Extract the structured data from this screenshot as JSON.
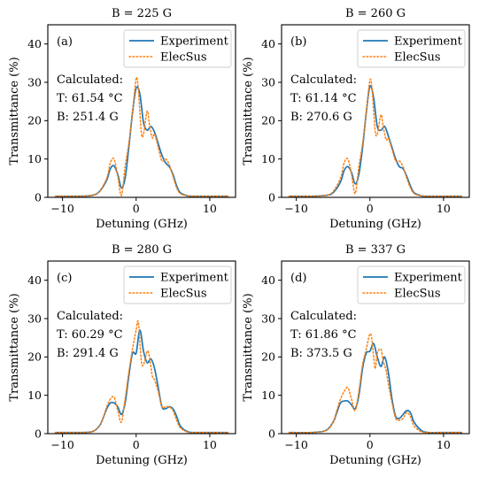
{
  "colors": {
    "experiment": "#1f77b4",
    "elecsus": "#ff7f0e",
    "axes": "#000000"
  },
  "chart_data": [
    {
      "type": "line",
      "title": "B = 225 G",
      "panel_label": "(a)",
      "xlabel": "Detuning (GHz)",
      "ylabel": "Transmittance (%)",
      "xlim": [
        -12,
        13.5
      ],
      "ylim": [
        0,
        45
      ],
      "xticks": [
        -10,
        0,
        10
      ],
      "yticks": [
        0,
        10,
        20,
        30,
        40
      ],
      "xtick_labels": [
        "−10",
        "0",
        "10"
      ],
      "ytick_labels": [
        "0",
        "10",
        "20",
        "30",
        "40"
      ],
      "legend_position": "top-right",
      "annotation": {
        "header": "Calculated:",
        "temperature": "T: 61.54 °C",
        "field": "B: 251.4 G"
      },
      "series": [
        {
          "name": "Experiment",
          "style": "solid",
          "x": [
            -11,
            -8,
            -6,
            -5,
            -4,
            -3.5,
            -3,
            -2.5,
            -2,
            -1.5,
            -1,
            -0.5,
            0,
            0.5,
            1,
            1.5,
            2,
            2.5,
            3,
            3.5,
            4,
            4.5,
            5,
            5.5,
            6,
            7,
            8,
            10,
            12.5
          ],
          "y": [
            0.3,
            0.3,
            0.5,
            1.5,
            4.5,
            7.5,
            8.2,
            6,
            2.5,
            5,
            13,
            22,
            28.5,
            27,
            19.5,
            17.5,
            18.5,
            17,
            14,
            11,
            9,
            8,
            6,
            3,
            1.2,
            0.4,
            0.3,
            0.3,
            0.3
          ]
        },
        {
          "name": "ElecSus",
          "style": "dotted",
          "x": [
            -11,
            -8,
            -6,
            -5,
            -4,
            -3.5,
            -3,
            -2.5,
            -2,
            -1.5,
            -1,
            -0.5,
            0,
            0.3,
            0.7,
            1,
            1.5,
            1.8,
            2.2,
            2.5,
            3,
            3.5,
            4,
            4.5,
            5,
            5.5,
            6,
            7,
            8,
            10,
            12.5
          ],
          "y": [
            0.3,
            0.3,
            0.5,
            1.5,
            5,
            9,
            10,
            5.5,
            0.5,
            8,
            14,
            22,
            31,
            28,
            17,
            16.5,
            22.5,
            19,
            15.5,
            16.5,
            13,
            9.5,
            10,
            8.5,
            5.5,
            2.5,
            1,
            0.4,
            0.3,
            0.3,
            0.3
          ]
        }
      ]
    },
    {
      "type": "line",
      "title": "B = 260 G",
      "panel_label": "(b)",
      "xlabel": "Detuning (GHz)",
      "ylabel": "Transmittance (%)",
      "xlim": [
        -12,
        13.5
      ],
      "ylim": [
        0,
        45
      ],
      "xticks": [
        -10,
        0,
        10
      ],
      "yticks": [
        0,
        10,
        20,
        30,
        40
      ],
      "xtick_labels": [
        "−10",
        "0",
        "10"
      ],
      "ytick_labels": [
        "0",
        "10",
        "20",
        "30",
        "40"
      ],
      "legend_position": "top-right",
      "annotation": {
        "header": "Calculated:",
        "temperature": "T: 61.14 °C",
        "field": "B: 270.6 G"
      },
      "series": [
        {
          "name": "Experiment",
          "style": "solid",
          "x": [
            -11,
            -8,
            -6,
            -5,
            -4,
            -3.5,
            -3,
            -2.5,
            -2,
            -1.5,
            -1,
            -0.5,
            0,
            0.5,
            1,
            1.5,
            2,
            2.5,
            3,
            3.5,
            4,
            4.5,
            5,
            5.5,
            6,
            7,
            8,
            10,
            12.5
          ],
          "y": [
            0.3,
            0.3,
            0.5,
            1.2,
            4,
            7,
            8,
            6.5,
            3.5,
            6,
            13,
            22,
            29,
            26,
            18.5,
            17.5,
            18.5,
            16,
            13,
            10,
            8,
            7.5,
            5.5,
            3,
            1.2,
            0.4,
            0.3,
            0.3,
            0.3
          ]
        },
        {
          "name": "ElecSus",
          "style": "dotted",
          "x": [
            -11,
            -8,
            -6,
            -5,
            -4,
            -3.5,
            -3,
            -2.5,
            -2,
            -1.5,
            -1,
            -0.5,
            0,
            0.3,
            0.7,
            1,
            1.5,
            1.8,
            2.2,
            2.5,
            3,
            3.5,
            4,
            4.5,
            5,
            5.5,
            6,
            7,
            8,
            10,
            12.5
          ],
          "y": [
            0.3,
            0.3,
            0.5,
            1.5,
            5,
            9,
            10,
            6,
            1,
            8,
            14,
            22,
            30.5,
            28,
            17.5,
            16.5,
            21.5,
            18.5,
            15,
            15.5,
            12.5,
            9.5,
            9.5,
            8,
            5,
            2.5,
            1,
            0.4,
            0.3,
            0.3,
            0.3
          ]
        }
      ]
    },
    {
      "type": "line",
      "title": "B = 280 G",
      "panel_label": "(c)",
      "xlabel": "Detuning (GHz)",
      "ylabel": "Transmittance (%)",
      "xlim": [
        -12,
        13.5
      ],
      "ylim": [
        0,
        45
      ],
      "xticks": [
        -10,
        0,
        10
      ],
      "yticks": [
        0,
        10,
        20,
        30,
        40
      ],
      "xtick_labels": [
        "−10",
        "0",
        "10"
      ],
      "ytick_labels": [
        "0",
        "10",
        "20",
        "30",
        "40"
      ],
      "legend_position": "top-right",
      "annotation": {
        "header": "Calculated:",
        "temperature": "T: 60.29 °C",
        "field": "B: 291.4 G"
      },
      "series": [
        {
          "name": "Experiment",
          "style": "solid",
          "x": [
            -11,
            -8,
            -6,
            -5,
            -4.5,
            -4,
            -3.5,
            -3,
            -2.5,
            -2,
            -1.5,
            -1,
            -0.5,
            0,
            0.5,
            1,
            1.5,
            2,
            2.5,
            3,
            3.5,
            4,
            4.5,
            5,
            5.5,
            6,
            7,
            8,
            10,
            12.5
          ],
          "y": [
            0.3,
            0.3,
            0.5,
            2,
            4,
            6.5,
            8,
            8,
            7,
            5,
            8,
            15,
            21,
            21,
            27,
            21.5,
            18.5,
            19.5,
            17,
            12,
            7,
            6.5,
            7,
            6.5,
            4.5,
            2,
            0.5,
            0.3,
            0.3,
            0.3
          ]
        },
        {
          "name": "ElecSus",
          "style": "dotted",
          "x": [
            -11,
            -8,
            -6,
            -5,
            -4.5,
            -4,
            -3.5,
            -3,
            -2.5,
            -2,
            -1.5,
            -1,
            -0.5,
            0,
            0.3,
            0.7,
            1,
            1.5,
            1.8,
            2.2,
            2.5,
            3,
            3.5,
            4,
            4.5,
            5,
            5.5,
            6,
            7,
            8,
            10,
            12.5
          ],
          "y": [
            0.3,
            0.3,
            0.5,
            2,
            4,
            7,
            9,
            9.5,
            6,
            3,
            9,
            16,
            22,
            27,
            29,
            19,
            18,
            21.5,
            20,
            15,
            14,
            11,
            7,
            7,
            7,
            6,
            3.5,
            1.5,
            0.4,
            0.3,
            0.3,
            0.3
          ]
        }
      ]
    },
    {
      "type": "line",
      "title": "B = 337 G",
      "panel_label": "(d)",
      "xlabel": "Detuning (GHz)",
      "ylabel": "Transmittance (%)",
      "xlim": [
        -12,
        13.5
      ],
      "ylim": [
        0,
        45
      ],
      "xticks": [
        -10,
        0,
        10
      ],
      "yticks": [
        0,
        10,
        20,
        30,
        40
      ],
      "xtick_labels": [
        "−10",
        "0",
        "10"
      ],
      "ytick_labels": [
        "0",
        "10",
        "20",
        "30",
        "40"
      ],
      "legend_position": "top-right",
      "annotation": {
        "header": "Calculated:",
        "temperature": "T: 61.86 °C",
        "field": "B: 373.5 G"
      },
      "series": [
        {
          "name": "Experiment",
          "style": "solid",
          "x": [
            -11,
            -8,
            -6,
            -5,
            -4.5,
            -4,
            -3.5,
            -3,
            -2.5,
            -2,
            -1.5,
            -1,
            -0.5,
            0,
            0.5,
            1,
            1.5,
            2,
            2.5,
            3,
            3.5,
            4,
            4.5,
            5,
            5.5,
            6,
            7,
            8,
            10,
            12.5
          ],
          "y": [
            0.3,
            0.3,
            0.8,
            3,
            5.5,
            8,
            8.5,
            8.5,
            7.5,
            6.5,
            10,
            17,
            21,
            21.5,
            23.5,
            20,
            17.5,
            20,
            16,
            9,
            4.5,
            4,
            5,
            6,
            5.5,
            3,
            0.8,
            0.3,
            0.3,
            0.3
          ]
        },
        {
          "name": "ElecSus",
          "style": "dotted",
          "x": [
            -11,
            -8,
            -6,
            -5,
            -4.5,
            -4,
            -3.5,
            -3,
            -2.5,
            -2,
            -1.5,
            -1,
            -0.5,
            0,
            0.3,
            0.7,
            1,
            1.5,
            1.8,
            2.2,
            2.5,
            3,
            3.5,
            4,
            4.5,
            5,
            5.5,
            6,
            7,
            8,
            10,
            12.5
          ],
          "y": [
            0.3,
            0.3,
            0.8,
            3,
            6,
            9,
            11,
            12,
            9,
            6,
            11,
            18,
            22,
            26,
            24,
            17,
            21,
            22,
            19,
            16.5,
            13,
            8,
            4,
            3.5,
            4,
            5.5,
            4.5,
            2,
            0.5,
            0.3,
            0.3,
            0.3
          ]
        }
      ]
    }
  ]
}
